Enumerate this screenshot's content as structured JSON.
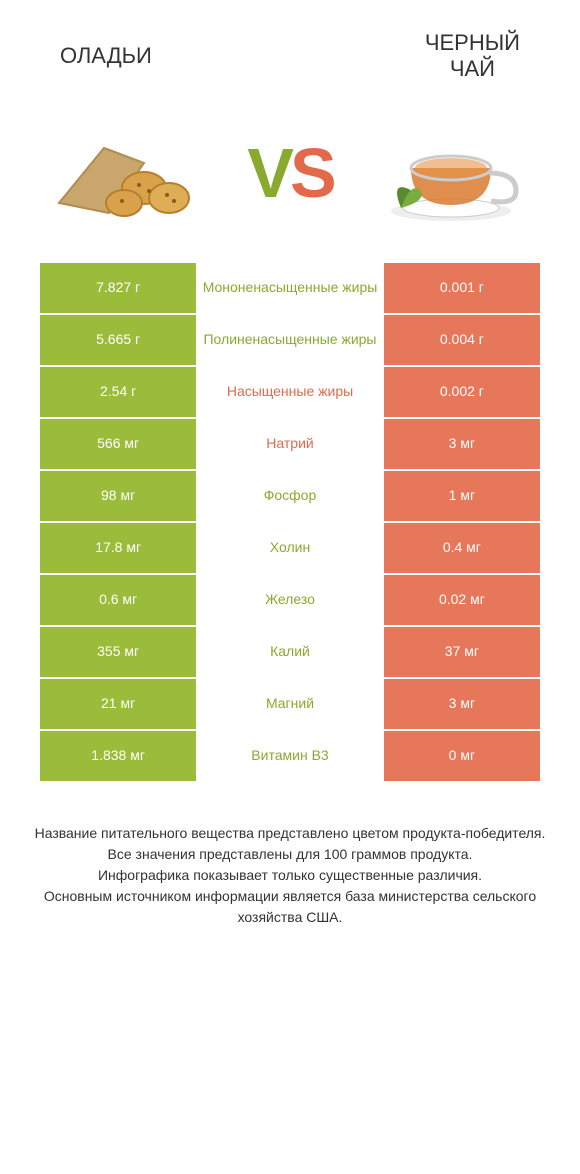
{
  "header": {
    "left_title": "ОЛАДЬИ",
    "right_title": "ЧЕРНЫЙ\nЧАЙ"
  },
  "vs": {
    "v": "V",
    "s": "S"
  },
  "colors": {
    "green": "#9bbb3a",
    "orange": "#e7775a",
    "green_text": "#8aaa2f",
    "orange_text": "#e26a4b",
    "background": "#ffffff"
  },
  "table": {
    "left_color": "green",
    "right_color": "orange",
    "rows": [
      {
        "left": "7.827 г",
        "label": "Мононенасыщенные жиры",
        "label_color": "green",
        "right": "0.001 г"
      },
      {
        "left": "5.665 г",
        "label": "Полиненасыщенные жиры",
        "label_color": "green",
        "right": "0.004 г"
      },
      {
        "left": "2.54 г",
        "label": "Насыщенные жиры",
        "label_color": "orange",
        "right": "0.002 г"
      },
      {
        "left": "566 мг",
        "label": "Натрий",
        "label_color": "orange",
        "right": "3 мг"
      },
      {
        "left": "98 мг",
        "label": "Фосфор",
        "label_color": "green",
        "right": "1 мг"
      },
      {
        "left": "17.8 мг",
        "label": "Холин",
        "label_color": "green",
        "right": "0.4 мг"
      },
      {
        "left": "0.6 мг",
        "label": "Железо",
        "label_color": "green",
        "right": "0.02 мг"
      },
      {
        "left": "355 мг",
        "label": "Калий",
        "label_color": "green",
        "right": "37 мг"
      },
      {
        "left": "21 мг",
        "label": "Магний",
        "label_color": "green",
        "right": "3 мг"
      },
      {
        "left": "1.838 мг",
        "label": "Витамин B3",
        "label_color": "green",
        "right": "0 мг"
      }
    ]
  },
  "footer": {
    "line1": "Название питательного вещества представлено цветом продукта-победителя.",
    "line2": "Все значения представлены для 100 граммов продукта.",
    "line3": "Инфографика показывает только существенные различия.",
    "line4": "Основным источником информации является база министерства сельского хозяйства США."
  }
}
